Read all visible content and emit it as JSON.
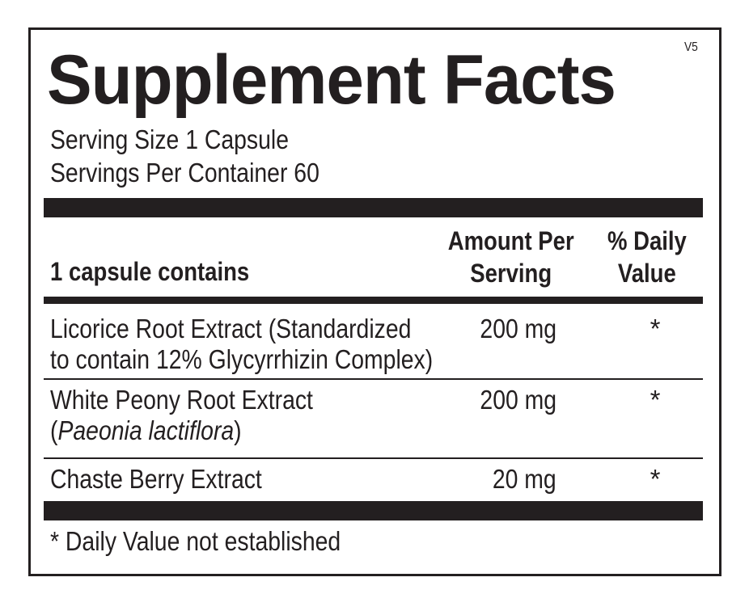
{
  "title": "Supplement Facts",
  "version": "V5",
  "serving_size": "Serving Size 1 Capsule",
  "servings_per_container": "Servings Per Container 60",
  "table": {
    "header": {
      "contains": "1 capsule contains",
      "amount_line1": "Amount Per",
      "amount_line2": "Serving",
      "dv_line1": "% Daily",
      "dv_line2": "Value"
    },
    "rows": [
      {
        "name_line1": "Licorice Root Extract (Standardized",
        "name_line2": "to contain 12% Glycyrrhizin Complex)",
        "amount": "200 mg",
        "dv": "*"
      },
      {
        "name_line1": "White Peony Root Extract",
        "name_line2_open": "(",
        "name_line2_italic": "Paeonia lactiflora",
        "name_line2_close": ")",
        "amount": "200 mg",
        "dv": "*"
      },
      {
        "name_line1": "Chaste Berry Extract",
        "amount": "20 mg",
        "dv": "*"
      }
    ]
  },
  "footnote": "* Daily Value not established"
}
